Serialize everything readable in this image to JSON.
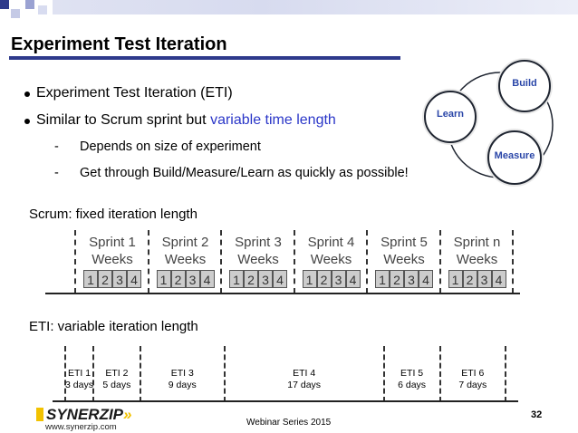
{
  "header": {
    "title": "Experiment Test Iteration"
  },
  "bullets": [
    {
      "text": "Experiment Test Iteration (ETI)"
    },
    {
      "prefix": "Similar to Scrum sprint but ",
      "highlight": "variable time length"
    }
  ],
  "sub_bullets": [
    {
      "dash": "-",
      "text": "Depends on size of experiment"
    },
    {
      "dash": "-",
      "text": "Get through Build/Measure/Learn as quickly as possible!"
    }
  ],
  "cycle": {
    "build": "Build",
    "learn": "Learn",
    "measure": "Measure"
  },
  "scrum": {
    "label": "Scrum: fixed iteration length",
    "sprints": [
      {
        "name": "Sprint 1",
        "unit": "Weeks"
      },
      {
        "name": "Sprint 2",
        "unit": "Weeks"
      },
      {
        "name": "Sprint 3",
        "unit": "Weeks"
      },
      {
        "name": "Sprint 4",
        "unit": "Weeks"
      },
      {
        "name": "Sprint 5",
        "unit": "Weeks"
      },
      {
        "name": "Sprint n",
        "unit": "Weeks"
      }
    ],
    "weeks": [
      "1",
      "2",
      "3",
      "4"
    ]
  },
  "eti": {
    "label": "ETI: variable iteration length",
    "iterations": [
      {
        "name": "ETI 1",
        "duration": "3 days",
        "days": 3
      },
      {
        "name": "ETI 2",
        "duration": "5 days",
        "days": 5
      },
      {
        "name": "ETI 3",
        "duration": "9 days",
        "days": 9
      },
      {
        "name": "ETI 4",
        "duration": "17 days",
        "days": 17
      },
      {
        "name": "ETI 5",
        "duration": "6 days",
        "days": 6
      },
      {
        "name": "ETI 6",
        "duration": "7 days",
        "days": 7
      }
    ]
  },
  "footer": {
    "logo": "SYNERZIP",
    "url": "www.synerzip.com",
    "webinar": "Webinar Series 2015",
    "page": "32"
  },
  "colors": {
    "accent": "#2e3a8c",
    "highlight": "#2a36c8",
    "cycle_text": "#2a46a8",
    "logo_yellow": "#f2c200"
  }
}
